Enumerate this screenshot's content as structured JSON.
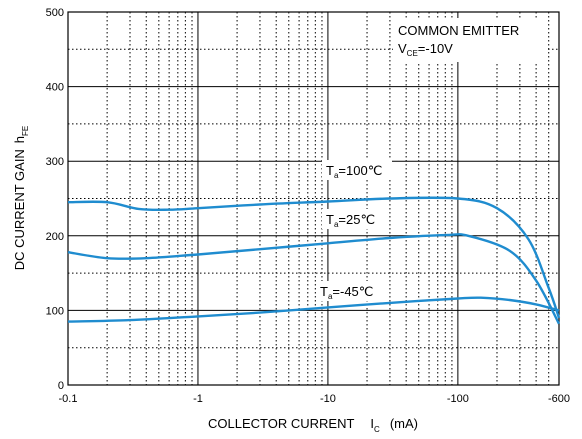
{
  "chart_data": {
    "type": "line",
    "title": "",
    "xscale": "log",
    "x_ticks": [
      {
        "value": 0.1,
        "label": "-0.1"
      },
      {
        "value": 1,
        "label": "-1"
      },
      {
        "value": 10,
        "label": "-10"
      },
      {
        "value": 100,
        "label": "-100"
      },
      {
        "value": 600,
        "label": "-600"
      }
    ],
    "xlim": [
      0.1,
      600
    ],
    "ylim": [
      0,
      500
    ],
    "y_ticks": [
      0,
      100,
      200,
      300,
      400,
      500
    ],
    "xlabel": {
      "main": "COLLECTOR CURRENT",
      "var": "I",
      "sub": "C",
      "unit": "(mA)"
    },
    "ylabel": {
      "main": "DC CURRENT GAIN",
      "var": "h",
      "sub": "FE"
    },
    "grid": true,
    "annotations": {
      "line1": "COMMON EMITTER",
      "line2_var": "V",
      "line2_sub": "CE",
      "line2_val": "=-10V"
    },
    "series": [
      {
        "name_var": "T",
        "name_sub": "a",
        "name_val": "=100℃",
        "points": [
          [
            0.1,
            245
          ],
          [
            0.2,
            245
          ],
          [
            0.35,
            236
          ],
          [
            0.6,
            235
          ],
          [
            1,
            237
          ],
          [
            3,
            242
          ],
          [
            10,
            246
          ],
          [
            30,
            250
          ],
          [
            100,
            250
          ],
          [
            200,
            237
          ],
          [
            350,
            195
          ],
          [
            500,
            130
          ],
          [
            600,
            90
          ]
        ]
      },
      {
        "name_var": "T",
        "name_sub": "a",
        "name_val": "=25℃",
        "points": [
          [
            0.1,
            178
          ],
          [
            0.2,
            170
          ],
          [
            0.4,
            170
          ],
          [
            1,
            175
          ],
          [
            3,
            182
          ],
          [
            10,
            190
          ],
          [
            30,
            197
          ],
          [
            80,
            201
          ],
          [
            120,
            200
          ],
          [
            250,
            180
          ],
          [
            400,
            140
          ],
          [
            600,
            82
          ]
        ]
      },
      {
        "name_var": "T",
        "name_sub": "a",
        "name_val": "=-45℃",
        "points": [
          [
            0.1,
            85
          ],
          [
            0.3,
            87
          ],
          [
            1,
            92
          ],
          [
            3,
            97
          ],
          [
            10,
            104
          ],
          [
            30,
            110
          ],
          [
            100,
            116
          ],
          [
            150,
            117
          ],
          [
            250,
            114
          ],
          [
            400,
            108
          ],
          [
            600,
            100
          ]
        ]
      }
    ],
    "colors": {
      "series": "#1f8ccf",
      "grid": "#000000"
    }
  }
}
